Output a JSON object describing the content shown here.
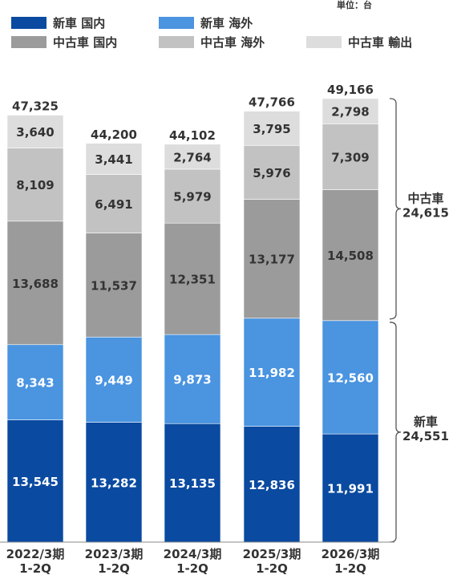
{
  "unit_label": "単位：台",
  "chart_data": {
    "type": "bar",
    "stacked": true,
    "categories": [
      [
        "2022/3期",
        "1-2Q"
      ],
      [
        "2023/3期",
        "1-2Q"
      ],
      [
        "2024/3期",
        "1-2Q"
      ],
      [
        "2025/3期",
        "1-2Q"
      ],
      [
        "2026/3期",
        "1-2Q"
      ]
    ],
    "series": [
      {
        "name": "新車 国内",
        "color": "#0a4aa0",
        "label_color": "#ffffff",
        "values": [
          13545,
          13282,
          13135,
          12836,
          11991
        ]
      },
      {
        "name": "新車 海外",
        "color": "#4a94e0",
        "label_color": "#ffffff",
        "values": [
          8343,
          9449,
          9873,
          11982,
          12560
        ]
      },
      {
        "name": "中古車 国内",
        "color": "#9b9b9b",
        "label_color": "#333333",
        "values": [
          13688,
          11537,
          12351,
          13177,
          14508
        ]
      },
      {
        "name": "中古車 海外",
        "color": "#c2c2c2",
        "label_color": "#333333",
        "values": [
          8109,
          6491,
          5979,
          5976,
          7309
        ]
      },
      {
        "name": "中古車 輸出",
        "color": "#dddddd",
        "label_color": "#333333",
        "values": [
          3640,
          3441,
          2764,
          3795,
          2798
        ]
      }
    ],
    "totals": [
      47325,
      44200,
      44102,
      47766,
      49166
    ],
    "ylim": [
      0,
      50000
    ],
    "grid": false,
    "legend_position": "top",
    "annotations": [
      {
        "label": [
          "中古車",
          "24,615"
        ],
        "applies_to": "中古車"
      },
      {
        "label": [
          "新車",
          "24,551"
        ],
        "applies_to": "新車"
      }
    ]
  }
}
